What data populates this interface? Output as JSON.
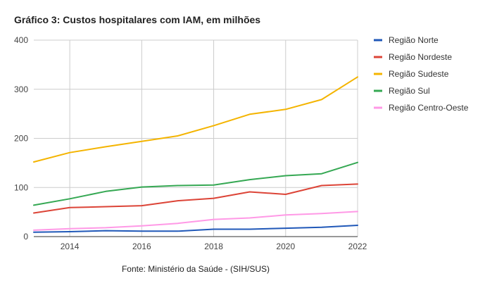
{
  "chart_data": {
    "type": "line",
    "title": "Gráfico 3: Custos hospitalares com IAM, em milhões",
    "source": "Fonte: Ministério da Saúde - (SIH/SUS)",
    "x": [
      2013,
      2014,
      2015,
      2016,
      2017,
      2018,
      2019,
      2020,
      2021,
      2022
    ],
    "x_ticks": [
      "2014",
      "2016",
      "2018",
      "2020",
      "2022"
    ],
    "xlim": [
      2013,
      2022
    ],
    "y_ticks": [
      "0",
      "100",
      "200",
      "300",
      "400"
    ],
    "ylim": [
      0,
      400
    ],
    "grid": true,
    "legend_position": "right",
    "series": [
      {
        "name": "Região Norte",
        "color": "#2058b8",
        "values": [
          9,
          10,
          12,
          11,
          11,
          15,
          15,
          17,
          19,
          23
        ]
      },
      {
        "name": "Região Nordeste",
        "color": "#dc4437",
        "values": [
          48,
          59,
          61,
          63,
          73,
          78,
          91,
          86,
          104,
          107
        ]
      },
      {
        "name": "Região Sudeste",
        "color": "#f4b400",
        "values": [
          152,
          171,
          183,
          194,
          205,
          226,
          249,
          259,
          279,
          325
        ]
      },
      {
        "name": "Região Sul",
        "color": "#35a853",
        "values": [
          64,
          77,
          92,
          101,
          104,
          105,
          116,
          124,
          128,
          151
        ]
      },
      {
        "name": "Região Centro-Oeste",
        "color": "#ff99e6",
        "values": [
          13,
          16,
          18,
          22,
          27,
          35,
          38,
          44,
          47,
          51
        ]
      }
    ]
  }
}
